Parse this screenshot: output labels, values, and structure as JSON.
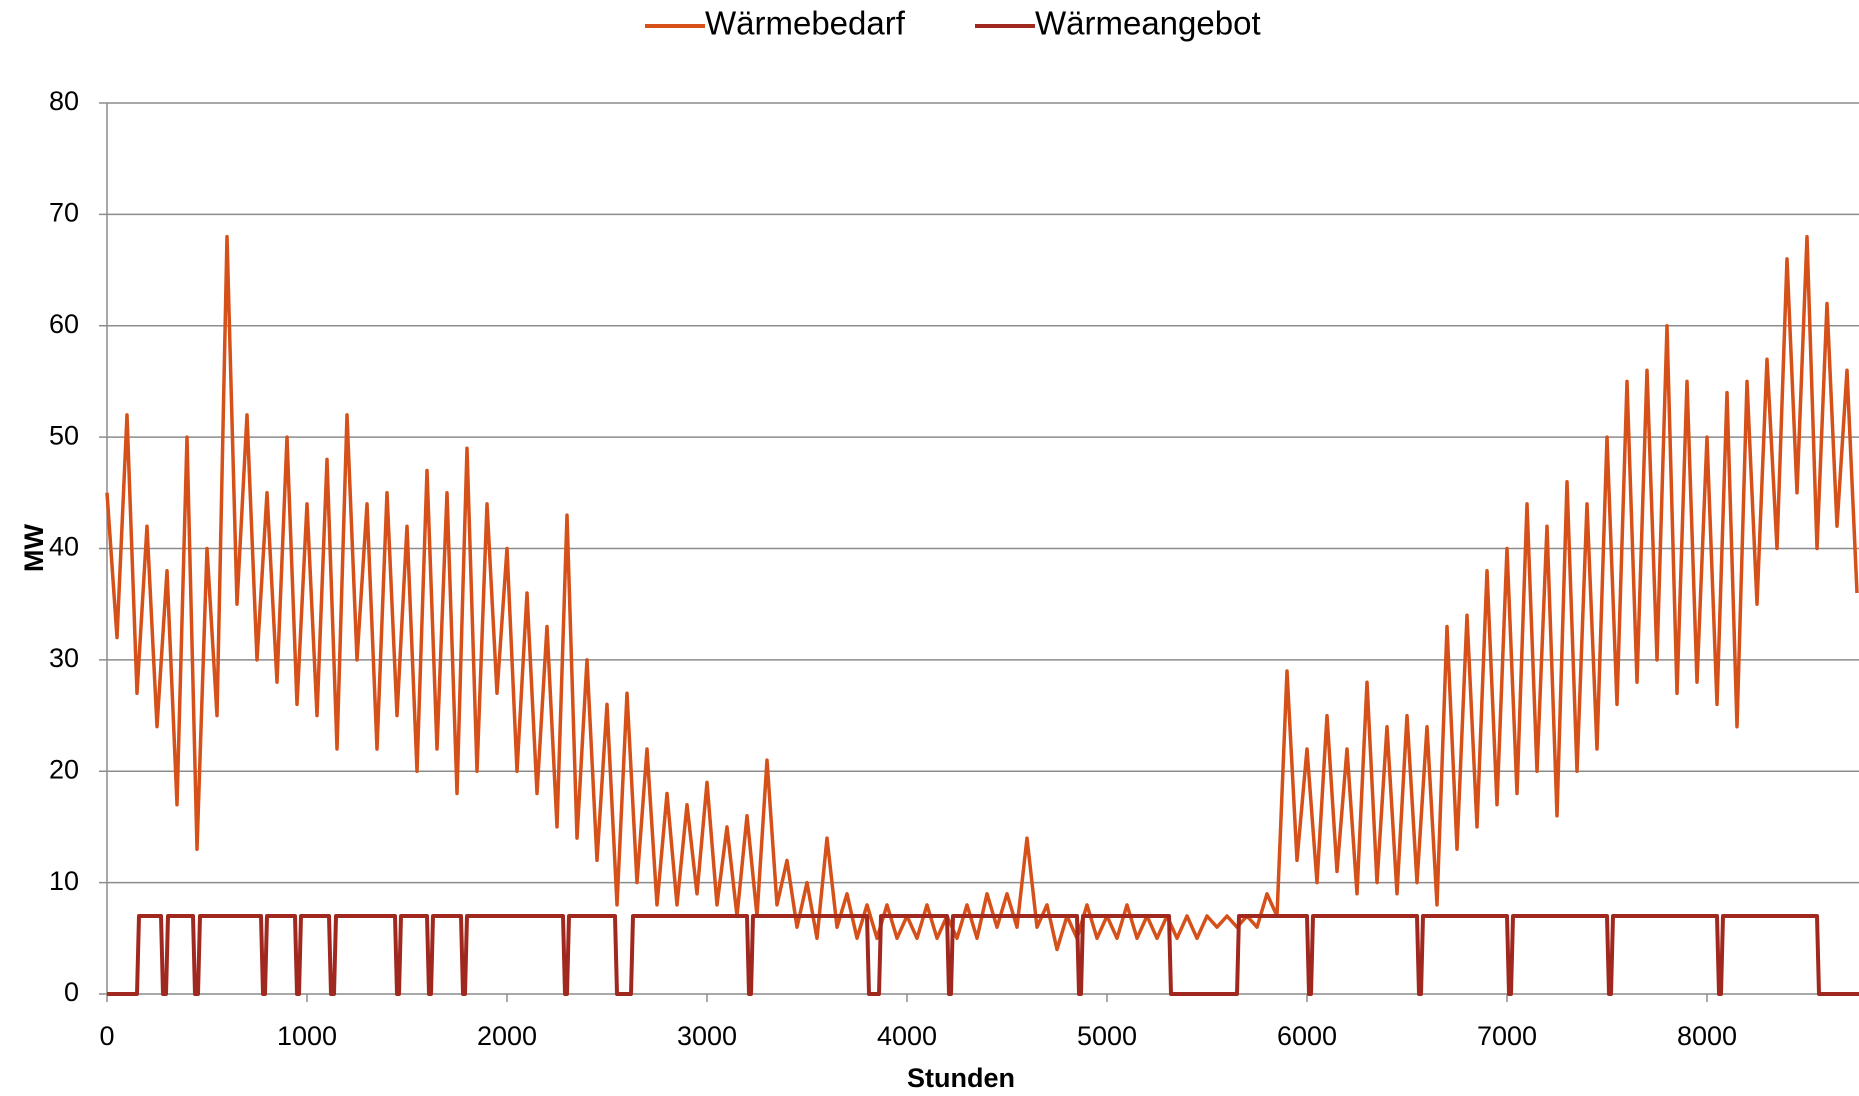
{
  "chart_data": {
    "type": "line",
    "x_label": "Stunden",
    "y_label": "MW",
    "legend": "top",
    "grid": true,
    "xlim": [
      0,
      8760
    ],
    "xticks": [
      0,
      1000,
      2000,
      3000,
      4000,
      5000,
      6000,
      7000,
      8000
    ],
    "ylim": [
      0,
      80
    ],
    "yticks": [
      0,
      10,
      20,
      30,
      40,
      50,
      60,
      70,
      80
    ],
    "series": [
      {
        "name": "Wärmebedarf",
        "color": "#d6501a",
        "x": [
          0,
          50,
          100,
          150,
          200,
          250,
          300,
          350,
          400,
          450,
          500,
          550,
          600,
          650,
          700,
          750,
          800,
          850,
          900,
          950,
          1000,
          1050,
          1100,
          1150,
          1200,
          1250,
          1300,
          1350,
          1400,
          1450,
          1500,
          1550,
          1600,
          1650,
          1700,
          1750,
          1800,
          1850,
          1900,
          1950,
          2000,
          2050,
          2100,
          2150,
          2200,
          2250,
          2300,
          2350,
          2400,
          2450,
          2500,
          2550,
          2600,
          2650,
          2700,
          2750,
          2800,
          2850,
          2900,
          2950,
          3000,
          3050,
          3100,
          3150,
          3200,
          3250,
          3300,
          3350,
          3400,
          3450,
          3500,
          3550,
          3600,
          3650,
          3700,
          3750,
          3800,
          3850,
          3900,
          3950,
          4000,
          4050,
          4100,
          4150,
          4200,
          4250,
          4300,
          4350,
          4400,
          4450,
          4500,
          4550,
          4600,
          4650,
          4700,
          4750,
          4800,
          4850,
          4900,
          4950,
          5000,
          5050,
          5100,
          5150,
          5200,
          5250,
          5300,
          5350,
          5400,
          5450,
          5500,
          5550,
          5600,
          5650,
          5700,
          5750,
          5800,
          5850,
          5900,
          5950,
          6000,
          6050,
          6100,
          6150,
          6200,
          6250,
          6300,
          6350,
          6400,
          6450,
          6500,
          6550,
          6600,
          6650,
          6700,
          6750,
          6800,
          6850,
          6900,
          6950,
          7000,
          7050,
          7100,
          7150,
          7200,
          7250,
          7300,
          7350,
          7400,
          7450,
          7500,
          7550,
          7600,
          7650,
          7700,
          7750,
          7800,
          7850,
          7900,
          7950,
          8000,
          8050,
          8100,
          8150,
          8200,
          8250,
          8300,
          8350,
          8400,
          8450,
          8500,
          8550,
          8600,
          8650,
          8700,
          8750
        ],
        "values": [
          45,
          32,
          52,
          27,
          42,
          24,
          38,
          17,
          50,
          13,
          40,
          25,
          68,
          35,
          52,
          30,
          45,
          28,
          50,
          26,
          44,
          25,
          48,
          22,
          52,
          30,
          44,
          22,
          45,
          25,
          42,
          20,
          47,
          22,
          45,
          18,
          49,
          20,
          44,
          27,
          40,
          20,
          36,
          18,
          33,
          15,
          43,
          14,
          30,
          12,
          26,
          8,
          27,
          10,
          22,
          8,
          18,
          8,
          17,
          9,
          19,
          8,
          15,
          7,
          16,
          7,
          21,
          8,
          12,
          6,
          10,
          5,
          14,
          6,
          9,
          5,
          8,
          5,
          8,
          5,
          7,
          5,
          8,
          5,
          7,
          5,
          8,
          5,
          9,
          6,
          9,
          6,
          14,
          6,
          8,
          4,
          7,
          5,
          8,
          5,
          7,
          5,
          8,
          5,
          7,
          5,
          7,
          5,
          7,
          5,
          7,
          6,
          7,
          6,
          7,
          6,
          9,
          7,
          29,
          12,
          22,
          10,
          25,
          11,
          22,
          9,
          28,
          10,
          24,
          9,
          25,
          10,
          24,
          8,
          33,
          13,
          34,
          15,
          38,
          17,
          40,
          18,
          44,
          20,
          42,
          16,
          46,
          20,
          44,
          22,
          50,
          26,
          55,
          28,
          56,
          30,
          60,
          27,
          55,
          28,
          50,
          26,
          54,
          24,
          55,
          35,
          57,
          40,
          66,
          45,
          68,
          40,
          62,
          42,
          56,
          36
        ]
      },
      {
        "name": "Wärmeangebot",
        "color": "#a0281e",
        "x": [
          0,
          150,
          160,
          270,
          280,
          295,
          305,
          430,
          440,
          455,
          465,
          770,
          780,
          790,
          800,
          940,
          950,
          960,
          970,
          1110,
          1120,
          1135,
          1145,
          1440,
          1450,
          1460,
          1470,
          1600,
          1610,
          1620,
          1630,
          1770,
          1780,
          1790,
          1800,
          2280,
          2290,
          2300,
          2310,
          2540,
          2550,
          2620,
          2630,
          3200,
          3210,
          3220,
          3230,
          3800,
          3810,
          3860,
          3870,
          4200,
          4210,
          4220,
          4230,
          4850,
          4860,
          4870,
          4880,
          5310,
          5320,
          5650,
          5660,
          6000,
          6010,
          6020,
          6030,
          6550,
          6560,
          6570,
          6580,
          7000,
          7010,
          7020,
          7030,
          7500,
          7510,
          7520,
          7530,
          8050,
          8060,
          8070,
          8080,
          8550,
          8560,
          8760
        ],
        "values": [
          0,
          0,
          7,
          7,
          0,
          0,
          7,
          7,
          0,
          0,
          7,
          7,
          0,
          0,
          7,
          7,
          0,
          0,
          7,
          7,
          0,
          0,
          7,
          7,
          0,
          0,
          7,
          7,
          0,
          0,
          7,
          7,
          0,
          0,
          7,
          7,
          0,
          0,
          7,
          7,
          0,
          0,
          7,
          7,
          0,
          0,
          7,
          7,
          0,
          0,
          7,
          7,
          0,
          0,
          7,
          7,
          0,
          0,
          7,
          7,
          0,
          0,
          7,
          7,
          0,
          0,
          7,
          7,
          0,
          0,
          7,
          7,
          0,
          0,
          7,
          7,
          0,
          0,
          7,
          7,
          0,
          0,
          7,
          7,
          0,
          0
        ]
      }
    ]
  }
}
